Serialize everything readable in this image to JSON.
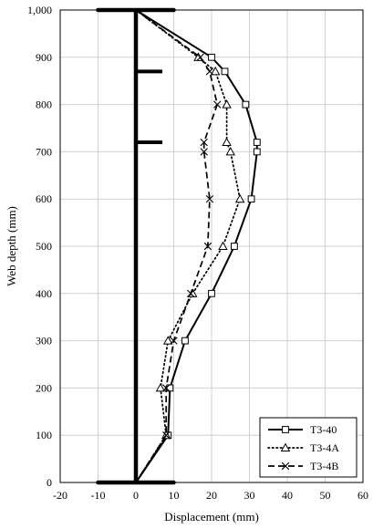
{
  "chart_data": {
    "type": "line",
    "xlabel": "Displacement (mm)",
    "ylabel": "Web depth (mm)",
    "xlim": [
      -20,
      60
    ],
    "ylim": [
      0,
      1000
    ],
    "xticks": [
      "-20",
      "-10",
      "0",
      "10",
      "20",
      "30",
      "40",
      "50",
      "60"
    ],
    "yticks": [
      "0",
      "100",
      "200",
      "300",
      "400",
      "500",
      "600",
      "700",
      "800",
      "900",
      "1,000"
    ],
    "grid": true,
    "legend_position": "bottom-right",
    "series": [
      {
        "name": "T3-40",
        "style": "solid",
        "marker": "square",
        "points": [
          [
            0,
            1000
          ],
          [
            20,
            900
          ],
          [
            23.5,
            870
          ],
          [
            29,
            800
          ],
          [
            32,
            720
          ],
          [
            32,
            700
          ],
          [
            30.5,
            600
          ],
          [
            26,
            500
          ],
          [
            20,
            400
          ],
          [
            13,
            300
          ],
          [
            9,
            200
          ],
          [
            8.5,
            100
          ],
          [
            0,
            0
          ]
        ]
      },
      {
        "name": "T3-4A",
        "style": "dotted",
        "marker": "triangle",
        "points": [
          [
            0,
            1000
          ],
          [
            16.5,
            900
          ],
          [
            21,
            870
          ],
          [
            24,
            800
          ],
          [
            24,
            720
          ],
          [
            25,
            700
          ],
          [
            27.5,
            600
          ],
          [
            23,
            500
          ],
          [
            15,
            400
          ],
          [
            8.5,
            300
          ],
          [
            6.5,
            200
          ],
          [
            8,
            100
          ],
          [
            0,
            0
          ]
        ]
      },
      {
        "name": "T3-4B",
        "style": "dashed",
        "marker": "x",
        "points": [
          [
            0,
            1000
          ],
          [
            17,
            900
          ],
          [
            19.5,
            870
          ],
          [
            21.5,
            800
          ],
          [
            18,
            720
          ],
          [
            18,
            700
          ],
          [
            19.5,
            600
          ],
          [
            19,
            500
          ],
          [
            14.5,
            400
          ],
          [
            10,
            300
          ],
          [
            8,
            200
          ],
          [
            8,
            100
          ],
          [
            0,
            0
          ]
        ]
      }
    ],
    "web_profile": {
      "x": 0,
      "flange_halfwidth": 10,
      "flange_levels": [
        0,
        1000
      ],
      "stiffener_levels": [
        870,
        720
      ],
      "stiffener_length": 7
    }
  }
}
